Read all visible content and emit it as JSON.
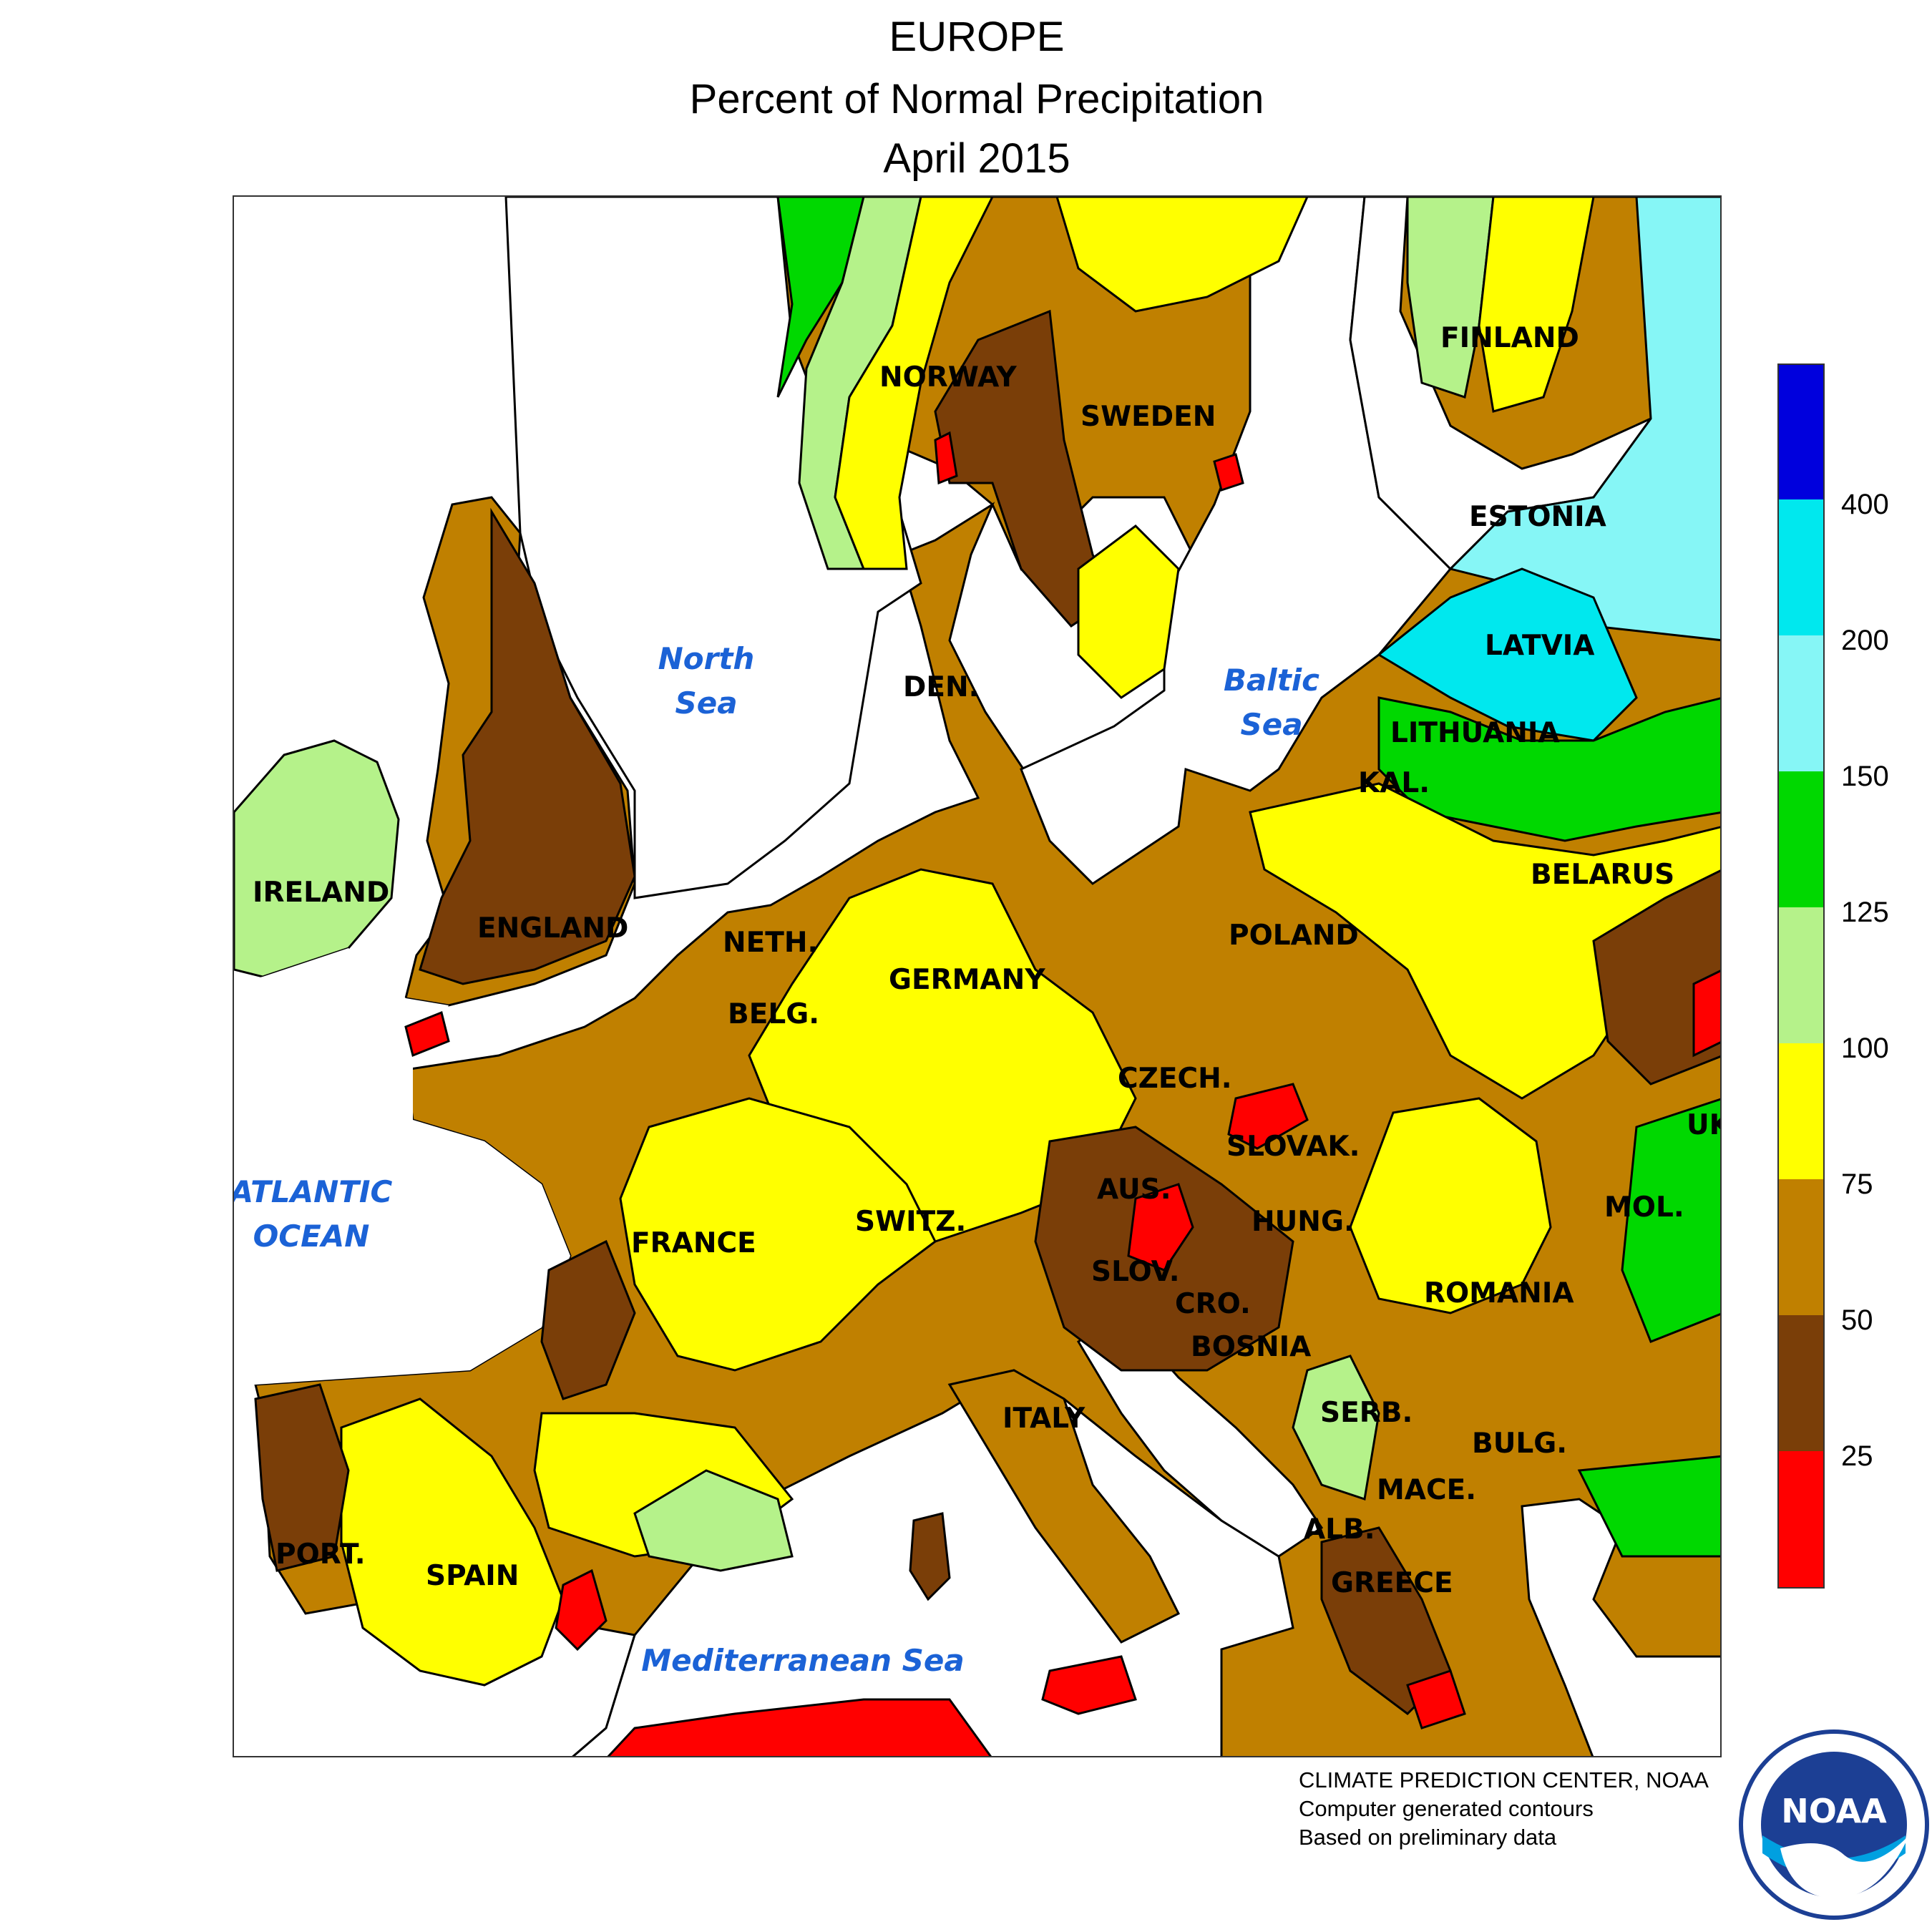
{
  "header": {
    "region": "EUROPE",
    "title": "Percent of Normal Precipitation",
    "period": "April 2015"
  },
  "map": {
    "countries": [
      "NORWAY",
      "SWEDEN",
      "FINLAND",
      "ESTONIA",
      "LATVIA",
      "LITHUANIA",
      "KAL.",
      "BELARUS",
      "IRELAND",
      "ENGLAND",
      "DEN.",
      "NETH.",
      "BELG.",
      "GERMANY",
      "POLAND",
      "CZECH.",
      "SLOVAK.",
      "AUS.",
      "SWITZ.",
      "FRANCE",
      "SLOV.",
      "CRO.",
      "HUNG.",
      "ROMANIA",
      "MOL.",
      "UK",
      "BOSNIA",
      "SERB.",
      "BULG.",
      "MACE.",
      "ALB.",
      "GREECE",
      "ITALY",
      "PORT.",
      "SPAIN"
    ],
    "water_bodies": [
      "North Sea",
      "Baltic Sea",
      "ATLANTIC OCEAN",
      "Mediterranean Sea"
    ]
  },
  "legend": {
    "ticks": [
      "400",
      "200",
      "150",
      "125",
      "100",
      "75",
      "50",
      "25"
    ],
    "colors": {
      "gt400": "#0000dd",
      "200_400": "#00e8ee",
      "150_200": "#86f6f6",
      "125_150": "#00d800",
      "100_125": "#b5f28a",
      "75_100": "#ffff00",
      "50_75": "#c08000",
      "25_50": "#7a3e08",
      "lt25": "#ff0000"
    }
  },
  "credits": {
    "line1": "CLIMATE PREDICTION CENTER, NOAA",
    "line2": "Computer generated contours",
    "line3": "Based on preliminary data"
  },
  "logo": {
    "text": "NOAA",
    "icon": "noaa-logo-icon"
  }
}
